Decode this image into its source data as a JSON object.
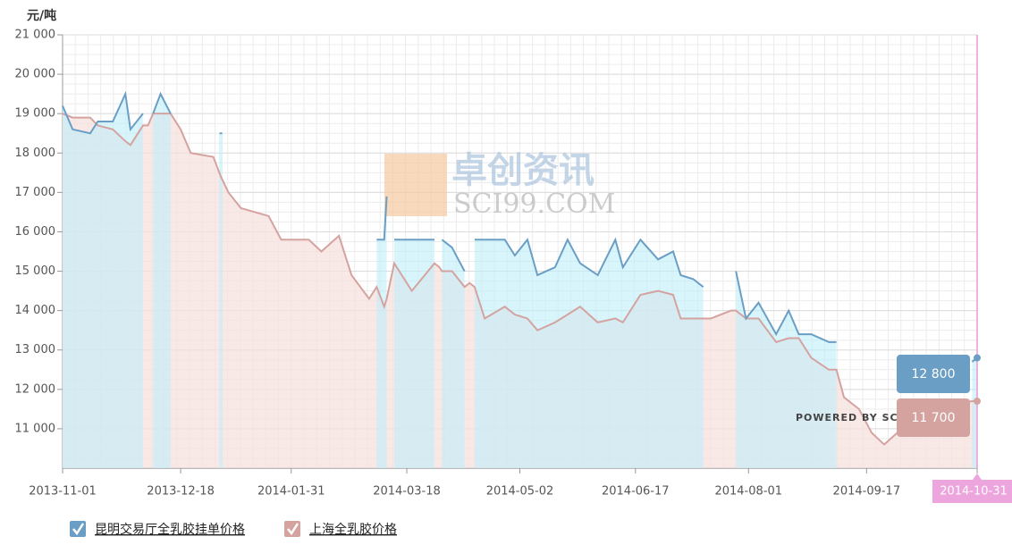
{
  "chart_data": {
    "type": "line",
    "y_unit": "元/吨",
    "watermark": {
      "cn": "卓创资讯",
      "en": "SCI99.COM"
    },
    "credit": "POWERED BY SCI99",
    "xlim": [
      "2013-11-01",
      "2014-10-31"
    ],
    "xticks": [
      "2013-11-01",
      "2013-12-18",
      "2014-01-31",
      "2014-03-18",
      "2014-05-02",
      "2014-06-17",
      "2014-08-01",
      "2014-09-17",
      "2014-10-31"
    ],
    "ylim": [
      10000,
      21000
    ],
    "yticks": [
      {
        "value": 11000,
        "label": "11 000"
      },
      {
        "value": 12000,
        "label": "12 000"
      },
      {
        "value": 13000,
        "label": "13 000"
      },
      {
        "value": 14000,
        "label": "14 000"
      },
      {
        "value": 15000,
        "label": "15 000"
      },
      {
        "value": 16000,
        "label": "16 000"
      },
      {
        "value": 17000,
        "label": "17 000"
      },
      {
        "value": 18000,
        "label": "18 000"
      },
      {
        "value": 19000,
        "label": "19 000"
      },
      {
        "value": 20000,
        "label": "20 000"
      },
      {
        "value": 21000,
        "label": "21 000"
      }
    ],
    "grid": true,
    "legend": "bottom-left",
    "x": [
      "2013-11-01",
      "2013-11-05",
      "2013-11-12",
      "2013-11-15",
      "2013-11-21",
      "2013-11-26",
      "2013-11-28",
      "2013-12-03",
      "2013-12-05",
      "2013-12-07",
      "2013-12-10",
      "2013-12-14",
      "2013-12-18",
      "2013-12-22",
      "2013-12-31",
      "2014-01-03",
      "2014-01-06",
      "2014-01-11",
      "2014-01-22",
      "2014-01-27",
      "2014-02-07",
      "2014-02-12",
      "2014-02-19",
      "2014-02-24",
      "2014-03-03",
      "2014-03-06",
      "2014-03-09",
      "2014-03-10",
      "2014-03-12",
      "2014-03-13",
      "2014-03-20",
      "2014-03-29",
      "2014-03-31",
      "2014-04-01",
      "2014-04-05",
      "2014-04-10",
      "2014-04-12",
      "2014-04-14",
      "2014-04-18",
      "2014-04-26",
      "2014-04-30",
      "2014-05-05",
      "2014-05-09",
      "2014-05-16",
      "2014-05-21",
      "2014-05-26",
      "2014-06-02",
      "2014-06-09",
      "2014-06-12",
      "2014-06-19",
      "2014-06-26",
      "2014-07-02",
      "2014-07-05",
      "2014-07-10",
      "2014-07-14",
      "2014-07-17",
      "2014-07-25",
      "2014-07-27",
      "2014-07-31",
      "2014-08-05",
      "2014-08-12",
      "2014-08-17",
      "2014-08-21",
      "2014-08-26",
      "2014-09-02",
      "2014-09-05",
      "2014-09-08",
      "2014-09-14",
      "2014-09-19",
      "2014-09-24",
      "2014-10-01",
      "2014-10-12",
      "2014-10-29",
      "2014-10-31"
    ],
    "series": [
      {
        "name": "昆明交易厅全乳胶挂单价格",
        "color": "#6a9ec5",
        "fill": "#bfeefa",
        "values": [
          19200,
          18600,
          18500,
          18800,
          18800,
          19500,
          18600,
          19000,
          null,
          19000,
          19500,
          19000,
          null,
          null,
          null,
          18500,
          null,
          null,
          null,
          null,
          null,
          null,
          null,
          null,
          null,
          15800,
          15800,
          16900,
          null,
          15800,
          15800,
          15800,
          null,
          15800,
          15600,
          15000,
          null,
          15800,
          15800,
          15800,
          15400,
          15800,
          14900,
          15100,
          15800,
          15200,
          14900,
          15800,
          15100,
          15800,
          15300,
          15500,
          14900,
          14800,
          14600,
          null,
          null,
          15000,
          13800,
          14200,
          13400,
          14000,
          13400,
          13400,
          13200,
          13200,
          null,
          null,
          null,
          null,
          null,
          null,
          12700,
          12800
        ],
        "value_labels": [
          null,
          null,
          null,
          null,
          null,
          null,
          null,
          null,
          null,
          null,
          null,
          null,
          null,
          null,
          null,
          null,
          null,
          null,
          null,
          null,
          null,
          null,
          null,
          null,
          null,
          null,
          null,
          null,
          null,
          null,
          null,
          null,
          null,
          null,
          null,
          null,
          null,
          null,
          null,
          null,
          null,
          null,
          null,
          null,
          null,
          null,
          null,
          null,
          null,
          null,
          null,
          null,
          null,
          null,
          null,
          null,
          null,
          null,
          null,
          null,
          null,
          null,
          null,
          null,
          null,
          null,
          null,
          null,
          null,
          null,
          null,
          null,
          null,
          "12 800"
        ]
      },
      {
        "name": "上海全乳胶价格",
        "color": "#d4a3a0",
        "fill": "#f6e0de",
        "values": [
          19000,
          18900,
          18900,
          18700,
          18600,
          18300,
          18200,
          18700,
          18700,
          19000,
          19000,
          19000,
          18600,
          18000,
          17900,
          17400,
          17000,
          16600,
          16400,
          15800,
          15800,
          15500,
          15900,
          14900,
          14300,
          14600,
          14100,
          14300,
          14900,
          15200,
          14500,
          15200,
          15100,
          15000,
          15000,
          14600,
          14700,
          14600,
          13800,
          14100,
          13900,
          13800,
          13500,
          13700,
          13900,
          14100,
          13700,
          13800,
          13700,
          14400,
          14500,
          14400,
          13800,
          13800,
          13800,
          13800,
          14000,
          14000,
          13800,
          13800,
          13200,
          13300,
          13300,
          12800,
          12500,
          12500,
          11800,
          11500,
          10900,
          10600,
          11000,
          11500,
          11700,
          11700
        ],
        "value_labels": [
          null,
          null,
          null,
          null,
          null,
          null,
          null,
          null,
          null,
          null,
          null,
          null,
          null,
          null,
          null,
          null,
          null,
          null,
          null,
          null,
          null,
          null,
          null,
          null,
          null,
          null,
          null,
          null,
          null,
          null,
          null,
          null,
          null,
          null,
          null,
          null,
          null,
          null,
          null,
          null,
          null,
          null,
          null,
          null,
          null,
          null,
          null,
          null,
          null,
          null,
          null,
          null,
          null,
          null,
          null,
          null,
          null,
          null,
          null,
          null,
          null,
          null,
          null,
          null,
          null,
          null,
          null,
          null,
          null,
          null,
          null,
          null,
          null,
          "11 700"
        ]
      }
    ]
  }
}
